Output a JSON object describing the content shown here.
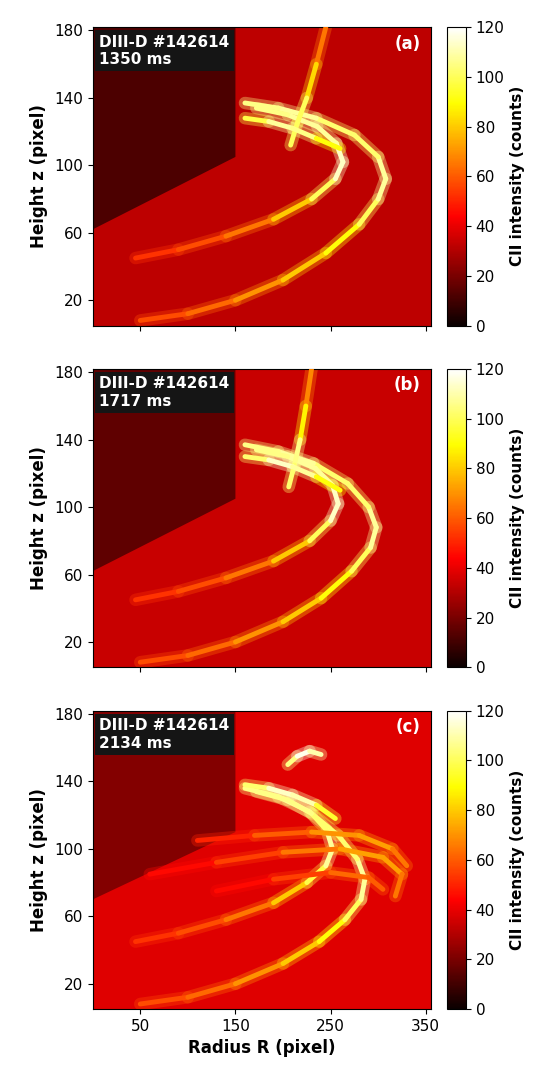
{
  "chart_data": [
    {
      "type": "image",
      "annotations": [
        "DIII-D #142614",
        "1350 ms",
        "(a)"
      ],
      "y_label": "Height z (pixel)",
      "tick_labels": "y",
      "xlim": [
        0,
        355
      ],
      "ylim": [
        5,
        182
      ],
      "xticks": [
        50,
        150,
        250,
        350
      ],
      "yticks": [
        20,
        60,
        100,
        140,
        180
      ],
      "background": 32,
      "regions": [
        {
          "R": [
            0,
            150,
            150,
            0
          ],
          "z": [
            182,
            182,
            105,
            62
          ],
          "intensity": 12
        }
      ],
      "emission_lines": [
        {
          "R": [
            50,
            100,
            150,
            200,
            245,
            280,
            300,
            308,
            300,
            275,
            235,
            195,
            160
          ],
          "z": [
            8,
            12,
            20,
            32,
            48,
            65,
            80,
            92,
            105,
            118,
            128,
            134,
            137
          ],
          "intensity": [
            55,
            60,
            65,
            75,
            85,
            95,
            105,
            110,
            105,
            100,
            105,
            110,
            100
          ]
        },
        {
          "R": [
            45,
            90,
            140,
            190,
            230,
            255,
            263,
            256,
            236,
            205,
            172
          ],
          "z": [
            45,
            50,
            58,
            68,
            80,
            92,
            102,
            113,
            123,
            130,
            134
          ],
          "intensity": [
            50,
            55,
            60,
            70,
            90,
            110,
            115,
            110,
            105,
            110,
            100
          ]
        },
        {
          "R": [
            245,
            235,
            225,
            215,
            208
          ],
          "z": [
            182,
            160,
            140,
            125,
            112
          ],
          "intensity": [
            60,
            70,
            95,
            105,
            95
          ]
        },
        {
          "R": [
            160,
            185,
            210,
            235,
            260
          ],
          "z": [
            128,
            126,
            122,
            116,
            110
          ],
          "intensity": [
            90,
            105,
            110,
            100,
            80
          ]
        }
      ]
    },
    {
      "type": "image",
      "annotations": [
        "DIII-D #142614",
        "1717 ms",
        "(b)"
      ],
      "y_label": "Height z (pixel)",
      "tick_labels": "y",
      "xlim": [
        0,
        355
      ],
      "ylim": [
        5,
        182
      ],
      "xticks": [
        50,
        150,
        250,
        350
      ],
      "yticks": [
        20,
        60,
        100,
        140,
        180
      ],
      "background": 34,
      "regions": [
        {
          "R": [
            0,
            150,
            150,
            0
          ],
          "z": [
            182,
            182,
            105,
            62
          ],
          "intensity": 15
        }
      ],
      "emission_lines": [
        {
          "R": [
            50,
            100,
            150,
            200,
            240,
            272,
            292,
            298,
            290,
            268,
            232,
            195,
            160
          ],
          "z": [
            8,
            12,
            20,
            32,
            46,
            62,
            76,
            88,
            100,
            114,
            126,
            133,
            137
          ],
          "intensity": [
            55,
            60,
            65,
            75,
            85,
            95,
            105,
            110,
            105,
            100,
            105,
            110,
            100
          ]
        },
        {
          "R": [
            45,
            90,
            140,
            190,
            228,
            250,
            258,
            252,
            234,
            205,
            172
          ],
          "z": [
            45,
            50,
            58,
            68,
            80,
            92,
            102,
            113,
            123,
            130,
            134
          ],
          "intensity": [
            50,
            55,
            60,
            70,
            90,
            110,
            115,
            110,
            105,
            110,
            100
          ]
        },
        {
          "R": [
            230,
            224,
            218,
            212,
            206
          ],
          "z": [
            182,
            160,
            140,
            125,
            112
          ],
          "intensity": [
            60,
            75,
            100,
            110,
            95
          ]
        },
        {
          "R": [
            160,
            185,
            210,
            235,
            260
          ],
          "z": [
            130,
            128,
            124,
            118,
            110
          ],
          "intensity": [
            95,
            110,
            115,
            100,
            80
          ]
        }
      ]
    },
    {
      "type": "image",
      "annotations": [
        "DIII-D #142614",
        "2134 ms",
        "(c)"
      ],
      "x_label": "Radius R (pixel)",
      "y_label": "Height z (pixel)",
      "xlim": [
        0,
        355
      ],
      "ylim": [
        5,
        182
      ],
      "xticks": [
        50,
        150,
        250,
        350
      ],
      "yticks": [
        20,
        60,
        100,
        140,
        180
      ],
      "background": 38,
      "regions": [
        {
          "R": [
            0,
            150,
            150,
            0
          ],
          "z": [
            182,
            182,
            110,
            70
          ],
          "intensity": 22
        }
      ],
      "emission_lines": [
        {
          "R": [
            50,
            100,
            150,
            200,
            238,
            265,
            282,
            286,
            278,
            258,
            228,
            195,
            160
          ],
          "z": [
            8,
            12,
            20,
            32,
            45,
            58,
            70,
            82,
            94,
            108,
            122,
            131,
            136
          ],
          "intensity": [
            55,
            60,
            65,
            75,
            85,
            95,
            105,
            110,
            105,
            100,
            105,
            110,
            100
          ]
        },
        {
          "R": [
            45,
            90,
            140,
            190,
            225,
            245,
            252,
            246,
            230,
            205,
            172
          ],
          "z": [
            45,
            50,
            58,
            68,
            80,
            90,
            100,
            111,
            121,
            129,
            134
          ],
          "intensity": [
            50,
            55,
            60,
            70,
            90,
            105,
            110,
            105,
            100,
            110,
            100
          ]
        },
        {
          "R": [
            60,
            130,
            200,
            260,
            305,
            325,
            318
          ],
          "z": [
            85,
            92,
            98,
            100,
            95,
            85,
            72
          ],
          "intensity": [
            40,
            50,
            60,
            70,
            75,
            70,
            60
          ]
        },
        {
          "R": [
            110,
            170,
            230,
            280,
            315,
            330
          ],
          "z": [
            105,
            108,
            110,
            108,
            100,
            90
          ],
          "intensity": [
            45,
            55,
            65,
            75,
            70,
            60
          ]
        },
        {
          "R": [
            130,
            190,
            250,
            290,
            305
          ],
          "z": [
            75,
            82,
            86,
            83,
            76
          ],
          "intensity": [
            40,
            50,
            60,
            65,
            55
          ]
        },
        {
          "R": [
            205,
            215,
            228,
            240
          ],
          "z": [
            150,
            155,
            158,
            156
          ],
          "intensity": [
            95,
            115,
            120,
            100
          ]
        },
        {
          "R": [
            160,
            185,
            210,
            235,
            255
          ],
          "z": [
            138,
            136,
            132,
            126,
            118
          ],
          "intensity": [
            95,
            110,
            115,
            105,
            85
          ]
        }
      ]
    }
  ],
  "colorbar": {
    "label": "CII intensity (counts)",
    "range": [
      0,
      120
    ],
    "ticks": [
      0,
      20,
      40,
      60,
      80,
      100,
      120
    ]
  }
}
